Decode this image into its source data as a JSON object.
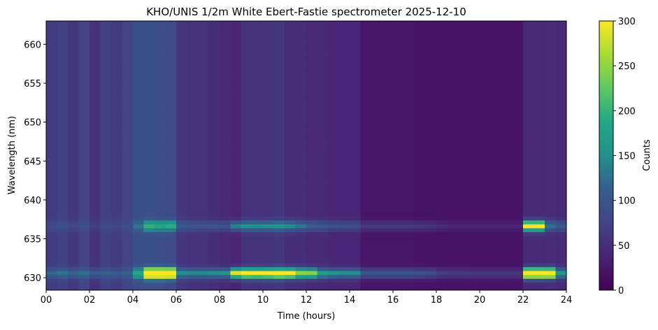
{
  "chart_data": {
    "type": "heatmap",
    "title": "KHO/UNIS 1/2m White Ebert-Fastie spectrometer 2025-12-10",
    "xlabel": "Time (hours)",
    "ylabel": "Wavelength (nm)",
    "xlim": [
      0,
      24
    ],
    "ylim": [
      628.4,
      663
    ],
    "xticks": [
      "00",
      "02",
      "04",
      "06",
      "08",
      "10",
      "12",
      "14",
      "16",
      "18",
      "20",
      "22",
      "24"
    ],
    "yticks": [
      630,
      635,
      640,
      645,
      650,
      655,
      660
    ],
    "colormap": "viridis",
    "colorbar": {
      "label": "Counts",
      "range": [
        0,
        300
      ],
      "ticks": [
        0,
        50,
        100,
        150,
        200,
        250,
        300
      ]
    },
    "time_step_hours": 0.5,
    "emission_lines_nm": [
      630.6,
      636.7
    ],
    "background_counts": [
      65,
      70,
      60,
      75,
      55,
      70,
      65,
      75,
      90,
      90,
      90,
      85,
      60,
      55,
      55,
      50,
      45,
      40,
      55,
      55,
      55,
      60,
      50,
      50,
      45,
      45,
      40,
      40,
      40,
      22,
      22,
      22,
      22,
      22,
      20,
      20,
      20,
      20,
      20,
      20,
      20,
      20,
      20,
      20,
      45,
      45,
      48,
      45
    ],
    "line_630_counts": [
      55,
      60,
      55,
      50,
      50,
      45,
      40,
      40,
      100,
      320,
      320,
      320,
      90,
      90,
      90,
      100,
      110,
      250,
      260,
      250,
      260,
      270,
      270,
      200,
      200,
      130,
      120,
      110,
      110,
      80,
      80,
      80,
      80,
      80,
      75,
      70,
      50,
      45,
      45,
      40,
      40,
      40,
      40,
      40,
      340,
      340,
      330,
      120
    ],
    "line_636_counts": [
      20,
      20,
      20,
      20,
      15,
      15,
      15,
      15,
      40,
      110,
      100,
      110,
      50,
      45,
      40,
      45,
      50,
      100,
      100,
      95,
      100,
      100,
      100,
      80,
      70,
      60,
      55,
      50,
      50,
      40,
      40,
      40,
      40,
      40,
      40,
      35,
      25,
      20,
      20,
      20,
      20,
      20,
      20,
      20,
      260,
      260,
      80,
      60
    ]
  }
}
